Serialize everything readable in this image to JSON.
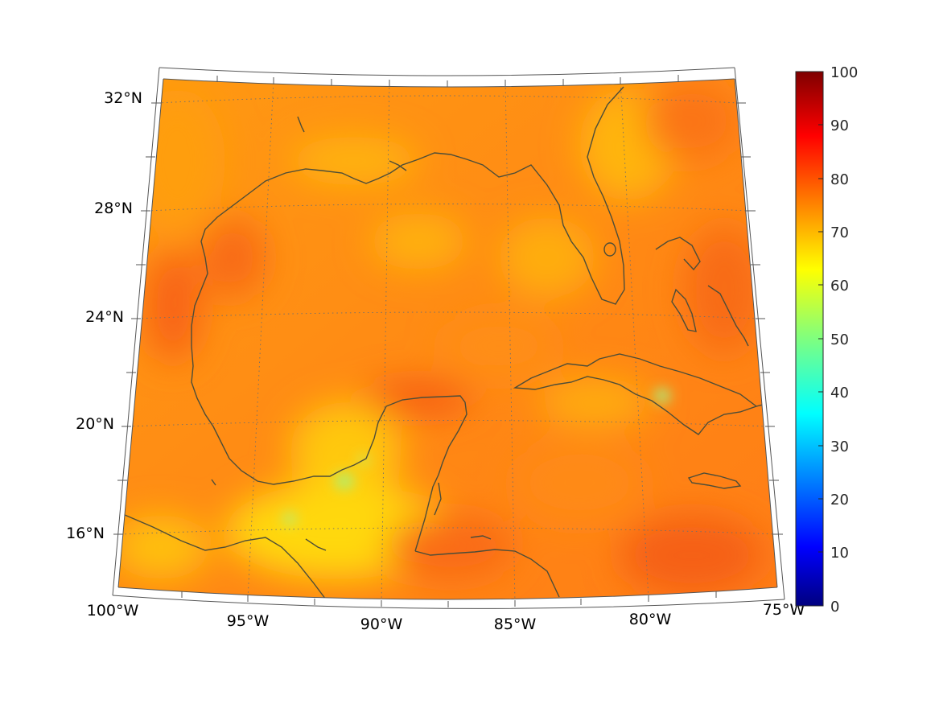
{
  "map": {
    "extent": {
      "lon": [
        -100,
        -75
      ],
      "lat": [
        14,
        33
      ]
    },
    "projection": "conic",
    "field": "gridded scalar, mostly 60-85 over Gulf of Mexico / Caribbean",
    "coastline_color": "#4d4d38",
    "graticule": "dotted",
    "lat_labels": [
      "32°N",
      "28°N",
      "24°N",
      "20°N",
      "16°N"
    ],
    "lon_labels": [
      "100°W",
      "95°W",
      "90°W",
      "85°W",
      "80°W",
      "75°W"
    ]
  },
  "colorbar": {
    "colormap": "jet",
    "range": [
      0,
      100
    ],
    "ticks": [
      "100",
      "90",
      "80",
      "70",
      "60",
      "50",
      "40",
      "30",
      "20",
      "10",
      "0"
    ]
  }
}
